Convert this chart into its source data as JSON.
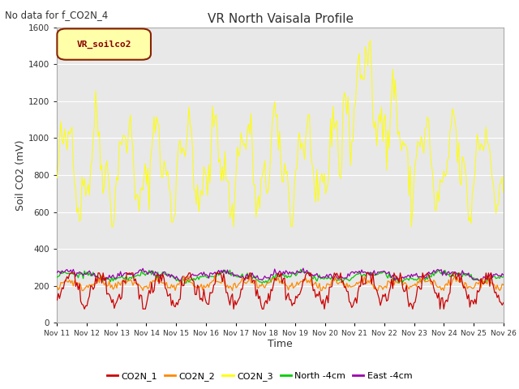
{
  "title": "VR North Vaisala Profile",
  "note": "No data for f_CO2N_4",
  "ylabel": "Soil CO2 (mV)",
  "xlabel": "Time",
  "ylim": [
    0,
    1600
  ],
  "yticks": [
    0,
    200,
    400,
    600,
    800,
    1000,
    1200,
    1400,
    1600
  ],
  "bg_color": "#e8e8e8",
  "legend_label": "VR_soilco2",
  "colors": {
    "CO2N_1": "#cc0000",
    "CO2N_2": "#ff8800",
    "CO2N_3": "#ffff00",
    "North_4cm": "#00cc00",
    "East_4cm": "#9900aa"
  },
  "legend_entries": [
    "CO2N_1",
    "CO2N_2",
    "CO2N_3",
    "North -4cm",
    "East -4cm"
  ],
  "xticklabels": [
    "Nov 11",
    "Nov 12",
    "Nov 13",
    "Nov 14",
    "Nov 15",
    "Nov 16",
    "Nov 17",
    "Nov 18",
    "Nov 19",
    "Nov 20",
    "Nov 21",
    "Nov 22",
    "Nov 23",
    "Nov 24",
    "Nov 25",
    "Nov 26"
  ]
}
